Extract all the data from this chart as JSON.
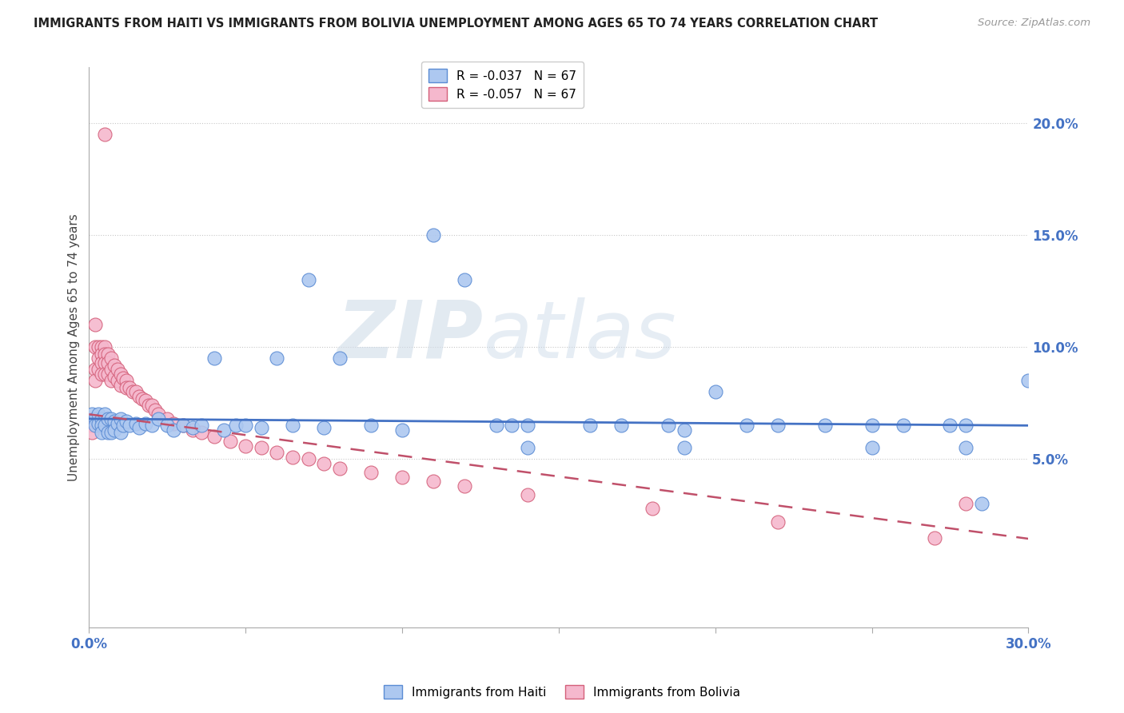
{
  "title": "IMMIGRANTS FROM HAITI VS IMMIGRANTS FROM BOLIVIA UNEMPLOYMENT AMONG AGES 65 TO 74 YEARS CORRELATION CHART",
  "source": "Source: ZipAtlas.com",
  "ylabel": "Unemployment Among Ages 65 to 74 years",
  "ylabel_right_ticks": [
    "20.0%",
    "15.0%",
    "10.0%",
    "5.0%"
  ],
  "ylabel_right_vals": [
    0.2,
    0.15,
    0.1,
    0.05
  ],
  "xmin": 0.0,
  "xmax": 0.3,
  "ymin": -0.025,
  "ymax": 0.225,
  "legend_haiti": "R = -0.037   N = 67",
  "legend_bolivia": "R = -0.057   N = 67",
  "color_haiti": "#adc8f0",
  "color_bolivia": "#f5b8cd",
  "color_haiti_edge": "#5b8cd4",
  "color_bolivia_edge": "#d4607a",
  "color_haiti_line": "#4472c4",
  "color_bolivia_line": "#c0506a",
  "watermark_zip": "ZIP",
  "watermark_atlas": "atlas",
  "haiti_x": [
    0.001,
    0.002,
    0.002,
    0.003,
    0.003,
    0.004,
    0.004,
    0.004,
    0.005,
    0.005,
    0.006,
    0.006,
    0.007,
    0.007,
    0.008,
    0.008,
    0.009,
    0.01,
    0.01,
    0.011,
    0.012,
    0.013,
    0.015,
    0.016,
    0.018,
    0.02,
    0.022,
    0.025,
    0.027,
    0.03,
    0.033,
    0.036,
    0.04,
    0.043,
    0.047,
    0.05,
    0.055,
    0.06,
    0.065,
    0.07,
    0.075,
    0.08,
    0.09,
    0.1,
    0.11,
    0.12,
    0.13,
    0.135,
    0.14,
    0.16,
    0.17,
    0.185,
    0.19,
    0.2,
    0.21,
    0.22,
    0.235,
    0.25,
    0.26,
    0.275,
    0.28,
    0.285,
    0.28,
    0.3,
    0.25,
    0.19,
    0.14
  ],
  "haiti_y": [
    0.07,
    0.068,
    0.065,
    0.07,
    0.066,
    0.068,
    0.065,
    0.062,
    0.07,
    0.065,
    0.068,
    0.062,
    0.068,
    0.062,
    0.067,
    0.063,
    0.066,
    0.068,
    0.062,
    0.065,
    0.067,
    0.065,
    0.066,
    0.064,
    0.066,
    0.065,
    0.068,
    0.065,
    0.063,
    0.065,
    0.064,
    0.065,
    0.095,
    0.063,
    0.065,
    0.065,
    0.064,
    0.095,
    0.065,
    0.13,
    0.064,
    0.095,
    0.065,
    0.063,
    0.15,
    0.13,
    0.065,
    0.065,
    0.065,
    0.065,
    0.065,
    0.065,
    0.063,
    0.08,
    0.065,
    0.065,
    0.065,
    0.065,
    0.065,
    0.065,
    0.065,
    0.03,
    0.055,
    0.085,
    0.055,
    0.055,
    0.055
  ],
  "bolivia_x": [
    0.001,
    0.001,
    0.001,
    0.002,
    0.002,
    0.002,
    0.003,
    0.003,
    0.003,
    0.004,
    0.004,
    0.004,
    0.004,
    0.005,
    0.005,
    0.005,
    0.005,
    0.006,
    0.006,
    0.006,
    0.007,
    0.007,
    0.007,
    0.008,
    0.008,
    0.009,
    0.009,
    0.01,
    0.01,
    0.011,
    0.012,
    0.012,
    0.013,
    0.014,
    0.015,
    0.016,
    0.017,
    0.018,
    0.019,
    0.02,
    0.021,
    0.022,
    0.025,
    0.027,
    0.03,
    0.033,
    0.036,
    0.04,
    0.045,
    0.05,
    0.055,
    0.06,
    0.065,
    0.07,
    0.075,
    0.08,
    0.09,
    0.1,
    0.11,
    0.12,
    0.14,
    0.18,
    0.22,
    0.27,
    0.28,
    0.005,
    0.002
  ],
  "bolivia_y": [
    0.068,
    0.065,
    0.062,
    0.1,
    0.09,
    0.085,
    0.1,
    0.095,
    0.09,
    0.1,
    0.097,
    0.093,
    0.088,
    0.1,
    0.097,
    0.093,
    0.088,
    0.097,
    0.093,
    0.088,
    0.095,
    0.09,
    0.085,
    0.092,
    0.087,
    0.09,
    0.085,
    0.088,
    0.083,
    0.086,
    0.085,
    0.082,
    0.082,
    0.08,
    0.08,
    0.078,
    0.077,
    0.076,
    0.074,
    0.074,
    0.072,
    0.07,
    0.068,
    0.066,
    0.065,
    0.063,
    0.062,
    0.06,
    0.058,
    0.056,
    0.055,
    0.053,
    0.051,
    0.05,
    0.048,
    0.046,
    0.044,
    0.042,
    0.04,
    0.038,
    0.034,
    0.028,
    0.022,
    0.015,
    0.03,
    0.195,
    0.11
  ]
}
